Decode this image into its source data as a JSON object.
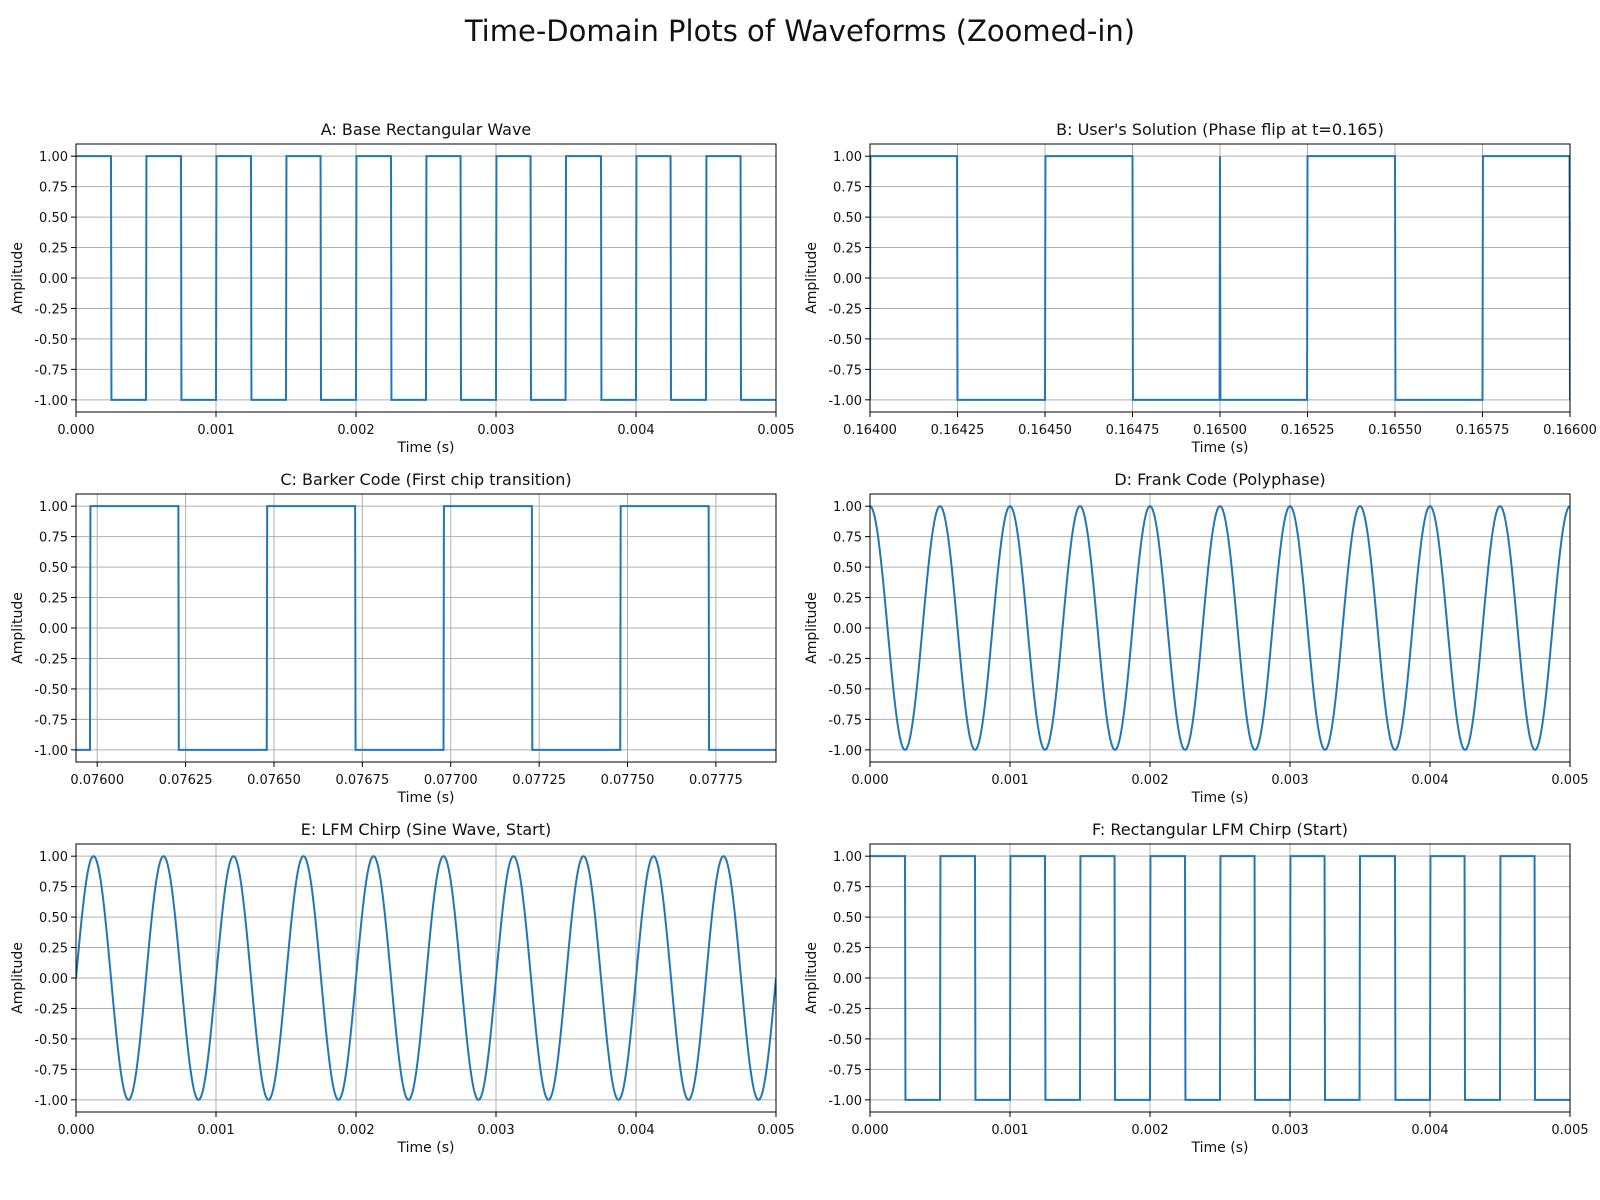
{
  "figure": {
    "title": "Time-Domain Plots of Waveforms (Zoomed-in)"
  },
  "chart_data": [
    {
      "type": "line",
      "title": "A: Base Rectangular Wave",
      "xlabel": "Time (s)",
      "ylabel": "Amplitude",
      "xlim": [
        0,
        0.005
      ],
      "ylim": [
        -1.1,
        1.1
      ],
      "xticks": [
        "0.000",
        "0.001",
        "0.002",
        "0.003",
        "0.004",
        "0.005"
      ],
      "yticks": [
        "1.00",
        "0.75",
        "0.50",
        "0.25",
        "0.00",
        "-0.25",
        "-0.50",
        "-0.75",
        "-1.00"
      ],
      "grid": true,
      "color": "#1f77b4",
      "waveform": {
        "kind": "square",
        "frequency_hz": 2000,
        "phase_deg": 0
      }
    },
    {
      "type": "line",
      "title": "B: User's Solution (Phase flip at t=0.165)",
      "xlabel": "Time (s)",
      "ylabel": "Amplitude",
      "xlim": [
        0.164,
        0.166
      ],
      "ylim": [
        -1.1,
        1.1
      ],
      "xticks": [
        "0.16400",
        "0.16425",
        "0.16450",
        "0.16475",
        "0.16500",
        "0.16525",
        "0.16550",
        "0.16575",
        "0.16600"
      ],
      "yticks": [
        "1.00",
        "0.75",
        "0.50",
        "0.25",
        "0.00",
        "-0.25",
        "-0.50",
        "-0.75",
        "-1.00"
      ],
      "grid": true,
      "color": "#1f77b4",
      "waveform": {
        "kind": "square-phase-flip",
        "frequency_hz": 2000,
        "phase_flip_at": 0.165
      }
    },
    {
      "type": "line",
      "title": "C: Barker Code (First chip transition)",
      "xlabel": "Time (s)",
      "ylabel": "Amplitude",
      "xlim": [
        0.07594,
        0.07792
      ],
      "ylim": [
        -1.1,
        1.1
      ],
      "xticks": [
        "0.07600",
        "0.07625",
        "0.07650",
        "0.07675",
        "0.07700",
        "0.07725",
        "0.07750",
        "0.07775"
      ],
      "yticks": [
        "1.00",
        "0.75",
        "0.50",
        "0.25",
        "0.00",
        "-0.25",
        "-0.50",
        "-0.75",
        "-1.00"
      ],
      "grid": true,
      "color": "#1f77b4",
      "waveform": {
        "kind": "square",
        "frequency_hz": 2000,
        "first_rise": 0.07598
      }
    },
    {
      "type": "line",
      "title": "D: Frank Code (Polyphase)",
      "xlabel": "Time (s)",
      "ylabel": "Amplitude",
      "xlim": [
        0,
        0.005
      ],
      "ylim": [
        -1.1,
        1.1
      ],
      "xticks": [
        "0.000",
        "0.001",
        "0.002",
        "0.003",
        "0.004",
        "0.005"
      ],
      "yticks": [
        "1.00",
        "0.75",
        "0.50",
        "0.25",
        "0.00",
        "-0.25",
        "-0.50",
        "-0.75",
        "-1.00"
      ],
      "grid": true,
      "color": "#1f77b4",
      "waveform": {
        "kind": "cosine",
        "frequency_hz": 2000
      }
    },
    {
      "type": "line",
      "title": "E: LFM Chirp (Sine Wave, Start)",
      "xlabel": "Time (s)",
      "ylabel": "Amplitude",
      "xlim": [
        0,
        0.005
      ],
      "ylim": [
        -1.1,
        1.1
      ],
      "xticks": [
        "0.000",
        "0.001",
        "0.002",
        "0.003",
        "0.004",
        "0.005"
      ],
      "yticks": [
        "1.00",
        "0.75",
        "0.50",
        "0.25",
        "0.00",
        "-0.25",
        "-0.50",
        "-0.75",
        "-1.00"
      ],
      "grid": true,
      "color": "#1f77b4",
      "waveform": {
        "kind": "sine",
        "frequency_hz": 2000
      }
    },
    {
      "type": "line",
      "title": "F: Rectangular LFM Chirp (Start)",
      "xlabel": "Time (s)",
      "ylabel": "Amplitude",
      "xlim": [
        0,
        0.005
      ],
      "ylim": [
        -1.1,
        1.1
      ],
      "xticks": [
        "0.000",
        "0.001",
        "0.002",
        "0.003",
        "0.004",
        "0.005"
      ],
      "yticks": [
        "1.00",
        "0.75",
        "0.50",
        "0.25",
        "0.00",
        "-0.25",
        "-0.50",
        "-0.75",
        "-1.00"
      ],
      "grid": true,
      "color": "#1f77b4",
      "waveform": {
        "kind": "square",
        "frequency_hz": 2000,
        "phase_deg": 0
      }
    }
  ]
}
